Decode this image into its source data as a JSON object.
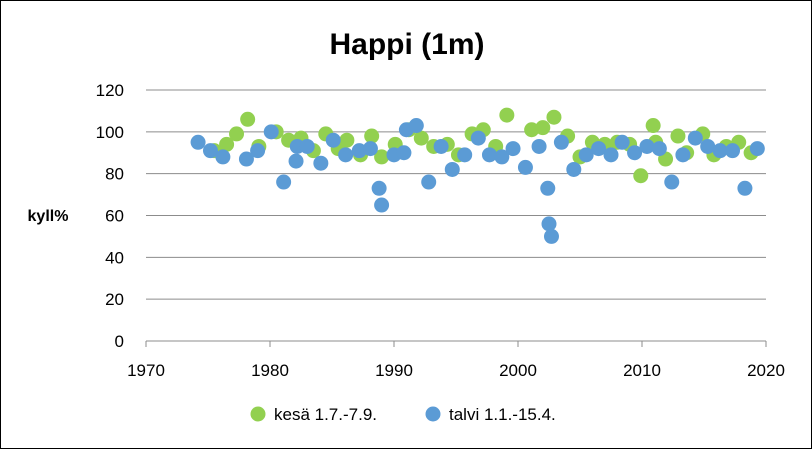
{
  "chart_data": {
    "type": "scatter",
    "title": "Happi (1m)",
    "xlabel": "",
    "ylabel": "kyll%",
    "xlim": [
      1970,
      2020
    ],
    "ylim": [
      0,
      120
    ],
    "x_ticks": [
      "1970",
      "1980",
      "1990",
      "2000",
      "2010",
      "2020"
    ],
    "y_ticks": [
      "0",
      "20",
      "40",
      "60",
      "80",
      "100",
      "120"
    ],
    "grid": "horizontal",
    "legend_position": "bottom",
    "series": [
      {
        "name": "kesä 1.7.-7.9.",
        "color": "#92D050",
        "points": [
          [
            1975.5,
            91
          ],
          [
            1976.5,
            94
          ],
          [
            1977.3,
            99
          ],
          [
            1978.2,
            106
          ],
          [
            1979.1,
            93
          ],
          [
            1980.5,
            100
          ],
          [
            1981.5,
            96
          ],
          [
            1982.5,
            97
          ],
          [
            1983.5,
            91
          ],
          [
            1984.5,
            99
          ],
          [
            1985.5,
            92
          ],
          [
            1986.2,
            96
          ],
          [
            1987.3,
            89
          ],
          [
            1988.2,
            98
          ],
          [
            1989.0,
            88
          ],
          [
            1990.1,
            94
          ],
          [
            1991.2,
            101
          ],
          [
            1992.2,
            97
          ],
          [
            1993.2,
            93
          ],
          [
            1994.3,
            94
          ],
          [
            1995.2,
            89
          ],
          [
            1996.3,
            99
          ],
          [
            1997.2,
            101
          ],
          [
            1998.2,
            93
          ],
          [
            1999.1,
            108
          ],
          [
            2001.1,
            101
          ],
          [
            2002.0,
            102
          ],
          [
            2002.9,
            107
          ],
          [
            2004.0,
            98
          ],
          [
            2005.0,
            88
          ],
          [
            2006.0,
            95
          ],
          [
            2007.0,
            94
          ],
          [
            2008.0,
            95
          ],
          [
            2009.0,
            94
          ],
          [
            2009.9,
            79
          ],
          [
            2010.9,
            103
          ],
          [
            2011.1,
            95
          ],
          [
            2011.9,
            87
          ],
          [
            2012.9,
            98
          ],
          [
            2013.6,
            90
          ],
          [
            2014.9,
            99
          ],
          [
            2015.8,
            89
          ],
          [
            2016.8,
            93
          ],
          [
            2017.8,
            95
          ],
          [
            2018.8,
            90
          ]
        ]
      },
      {
        "name": "talvi 1.1.-15.4.",
        "color": "#5B9BD5",
        "points": [
          [
            1974.2,
            95
          ],
          [
            1975.2,
            91
          ],
          [
            1976.2,
            88
          ],
          [
            1978.1,
            87
          ],
          [
            1979.0,
            91
          ],
          [
            1980.1,
            100
          ],
          [
            1981.1,
            76
          ],
          [
            1982.1,
            86
          ],
          [
            1982.2,
            93
          ],
          [
            1983.0,
            93
          ],
          [
            1984.1,
            85
          ],
          [
            1985.1,
            96
          ],
          [
            1986.1,
            89
          ],
          [
            1987.2,
            91
          ],
          [
            1988.1,
            92
          ],
          [
            1988.8,
            73
          ],
          [
            1989.0,
            65
          ],
          [
            1990.0,
            89
          ],
          [
            1990.8,
            90
          ],
          [
            1991.0,
            101
          ],
          [
            1991.8,
            103
          ],
          [
            1992.8,
            76
          ],
          [
            1993.8,
            93
          ],
          [
            1994.7,
            82
          ],
          [
            1995.7,
            89
          ],
          [
            1996.8,
            97
          ],
          [
            1997.7,
            89
          ],
          [
            1998.7,
            88
          ],
          [
            1999.6,
            92
          ],
          [
            2000.6,
            83
          ],
          [
            2001.7,
            93
          ],
          [
            2002.4,
            73
          ],
          [
            2002.5,
            56
          ],
          [
            2002.7,
            50
          ],
          [
            2003.5,
            95
          ],
          [
            2004.5,
            82
          ],
          [
            2005.5,
            89
          ],
          [
            2006.5,
            92
          ],
          [
            2007.5,
            89
          ],
          [
            2008.4,
            95
          ],
          [
            2009.4,
            90
          ],
          [
            2010.4,
            93
          ],
          [
            2011.4,
            92
          ],
          [
            2012.4,
            76
          ],
          [
            2013.3,
            89
          ],
          [
            2014.3,
            97
          ],
          [
            2015.3,
            93
          ],
          [
            2016.3,
            91
          ],
          [
            2017.3,
            91
          ],
          [
            2018.3,
            73
          ],
          [
            2019.3,
            92
          ]
        ]
      }
    ]
  }
}
